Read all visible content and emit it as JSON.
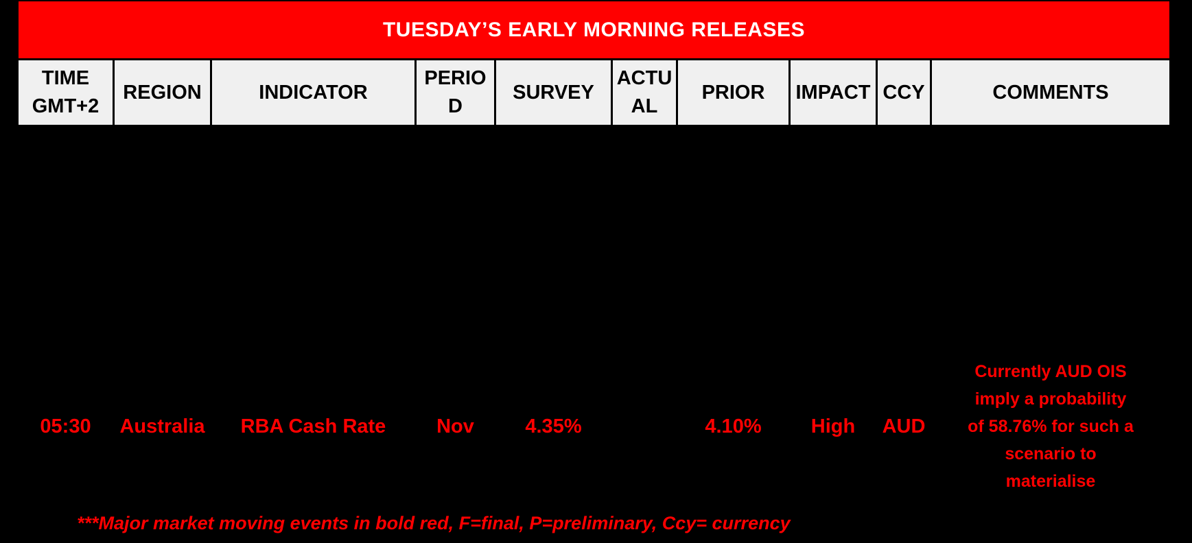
{
  "banner": {
    "title": "TUESDAY’S EARLY MORNING RELEASES"
  },
  "table": {
    "headers": [
      "TIME GMT+2",
      "REGION",
      "INDICATOR",
      "PERIOD",
      "SURVEY",
      "ACTUAL",
      "PRIOR",
      "IMPACT",
      "CCY",
      "COMMENTS"
    ],
    "row": {
      "time": "05:30",
      "region": "Australia",
      "indicator": "RBA Cash Rate",
      "period": "Nov",
      "survey": "4.35%",
      "actual": "",
      "prior": "4.10%",
      "impact": "High",
      "ccy": "AUD",
      "comments": "Currently AUD OIS imply a probability of 58.76% for such a scenario to materialise"
    }
  },
  "footnote": "***Major market moving events in bold red, F=final, P=preliminary, Ccy= currency",
  "colors": {
    "page_bg": "#000000",
    "banner_red": "#FF0000",
    "highlight_red": "#FF0000",
    "header_bg": "#F0F0F0",
    "header_text": "#000000",
    "title_text": "#FFFFFF"
  }
}
